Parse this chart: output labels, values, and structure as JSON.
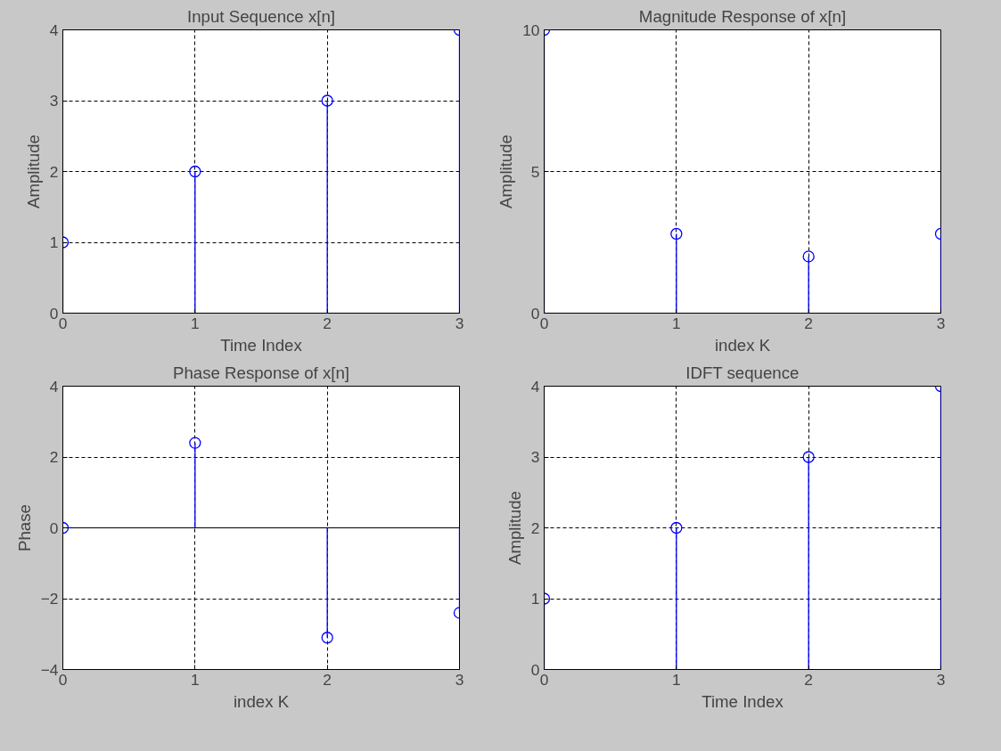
{
  "chart_data": [
    {
      "type": "lollipop",
      "title": "Input Sequence x[n]",
      "xlabel": "Time Index",
      "ylabel": "Amplitude",
      "x": [
        0,
        1,
        2,
        3
      ],
      "values": [
        1,
        2,
        3,
        4
      ],
      "color": "#0000ff",
      "marker": "circle",
      "xlim": [
        0,
        3
      ],
      "ylim": [
        0,
        4
      ],
      "xticks": [
        0,
        1,
        2,
        3
      ],
      "yticks": [
        0,
        1,
        2,
        3,
        4
      ],
      "grid": true
    },
    {
      "type": "lollipop",
      "title": "Magnitude Response of x[n]",
      "xlabel": "index K",
      "ylabel": "Amplitude",
      "x": [
        0,
        1,
        2,
        3
      ],
      "values": [
        10,
        2.8,
        2,
        2.8
      ],
      "color": "#0000ff",
      "marker": "circle",
      "xlim": [
        0,
        3
      ],
      "ylim": [
        0,
        10
      ],
      "xticks": [
        0,
        1,
        2,
        3
      ],
      "yticks": [
        0,
        5,
        10
      ],
      "grid": true
    },
    {
      "type": "lollipop",
      "title": "Phase Response of x[n]",
      "xlabel": "index K",
      "ylabel": "Phase",
      "x": [
        0,
        1,
        2,
        3
      ],
      "values": [
        0,
        2.4,
        -3.1,
        -2.4
      ],
      "color": "#0000ff",
      "marker": "circle",
      "xlim": [
        0,
        3
      ],
      "ylim": [
        -4,
        4
      ],
      "xticks": [
        0,
        1,
        2,
        3
      ],
      "yticks": [
        -4,
        -2,
        0,
        2,
        4
      ],
      "grid": true,
      "ref_lines": [
        {
          "axis": "y",
          "value": 0,
          "color": "#000000"
        }
      ]
    },
    {
      "type": "lollipop",
      "title": "IDFT sequence",
      "xlabel": "Time Index",
      "ylabel": "Amplitude",
      "x": [
        0,
        1,
        2,
        3
      ],
      "values": [
        1,
        2,
        3,
        4
      ],
      "color": "#0000ff",
      "marker": "circle",
      "xlim": [
        0,
        3
      ],
      "ylim": [
        0,
        4
      ],
      "xticks": [
        0,
        1,
        2,
        3
      ],
      "yticks": [
        0,
        1,
        2,
        3,
        4
      ],
      "grid": true
    }
  ]
}
